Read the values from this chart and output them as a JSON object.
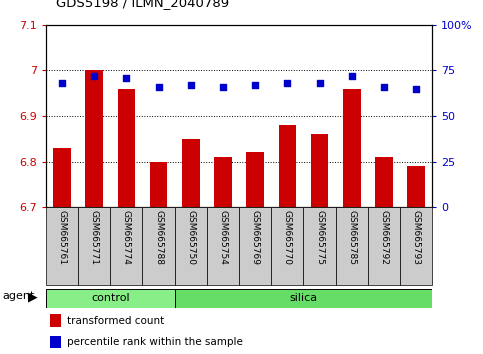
{
  "title": "GDS5198 / ILMN_2040789",
  "samples": [
    "GSM665761",
    "GSM665771",
    "GSM665774",
    "GSM665788",
    "GSM665750",
    "GSM665754",
    "GSM665769",
    "GSM665770",
    "GSM665775",
    "GSM665785",
    "GSM665792",
    "GSM665793"
  ],
  "groups": [
    "control",
    "control",
    "control",
    "control",
    "silica",
    "silica",
    "silica",
    "silica",
    "silica",
    "silica",
    "silica",
    "silica"
  ],
  "transformed_count": [
    6.83,
    7.0,
    6.96,
    6.8,
    6.85,
    6.81,
    6.82,
    6.88,
    6.86,
    6.96,
    6.81,
    6.79
  ],
  "percentile_rank": [
    68,
    72,
    71,
    66,
    67,
    66,
    67,
    68,
    68,
    72,
    66,
    65
  ],
  "ylim_left": [
    6.7,
    7.1
  ],
  "ylim_right": [
    0,
    100
  ],
  "yticks_left": [
    6.7,
    6.8,
    6.9,
    7.0,
    7.1
  ],
  "ytick_labels_left": [
    "6.7",
    "6.8",
    "6.9",
    "7",
    "7.1"
  ],
  "yticks_right": [
    0,
    25,
    50,
    75,
    100
  ],
  "ytick_labels_right": [
    "0",
    "25",
    "50",
    "75",
    "100%"
  ],
  "bar_color": "#cc0000",
  "dot_color": "#0000cc",
  "control_color": "#88ee88",
  "silica_color": "#66dd66",
  "tick_area_color": "#cccccc",
  "n_control": 4,
  "n_silica": 8
}
